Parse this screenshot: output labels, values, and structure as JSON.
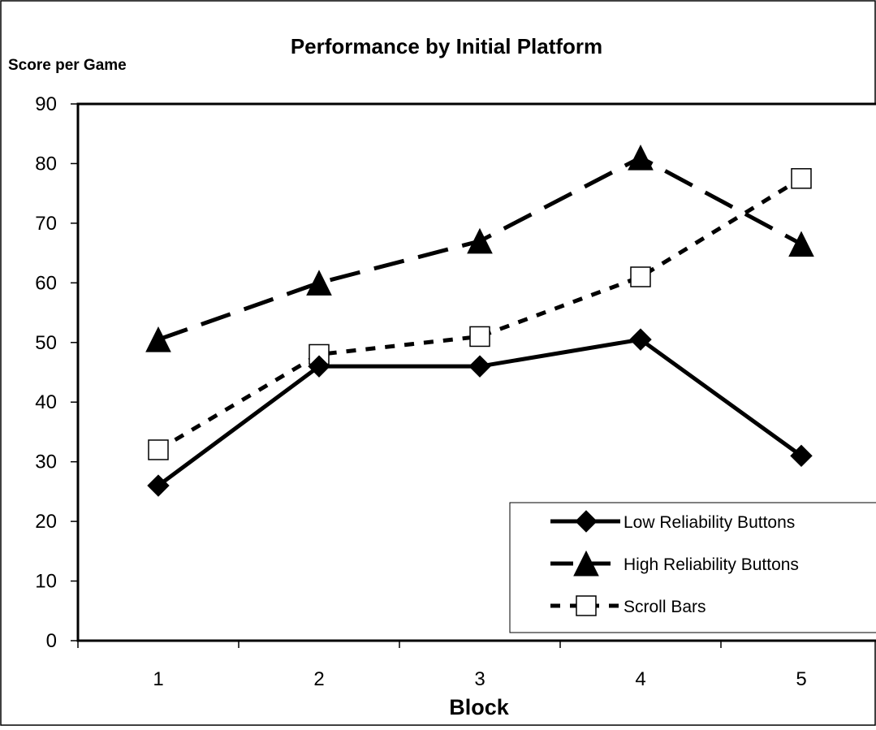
{
  "chart_data": {
    "type": "line",
    "title": "Performance by Initial Platform",
    "ylabel": "Score per Game",
    "xlabel": "Block",
    "categories": [
      "1",
      "2",
      "3",
      "4",
      "5"
    ],
    "ylim": [
      0,
      90
    ],
    "yticks": [
      "0",
      "10",
      "20",
      "30",
      "40",
      "50",
      "60",
      "70",
      "80",
      "90"
    ],
    "grid": false,
    "legend_position": "bottom-right",
    "series": [
      {
        "name": "Low Reliability Buttons",
        "values": [
          26,
          46,
          46,
          50.5,
          31
        ],
        "line_style": "solid",
        "marker": "diamond-filled",
        "color": "#000000"
      },
      {
        "name": "High Reliability Buttons",
        "values": [
          50.5,
          60,
          67,
          81,
          66.5
        ],
        "line_style": "dashed",
        "marker": "triangle-filled",
        "color": "#000000"
      },
      {
        "name": "Scroll Bars",
        "values": [
          32,
          48,
          51,
          61,
          77.5
        ],
        "line_style": "dotted",
        "marker": "square-open",
        "color": "#000000"
      }
    ]
  }
}
